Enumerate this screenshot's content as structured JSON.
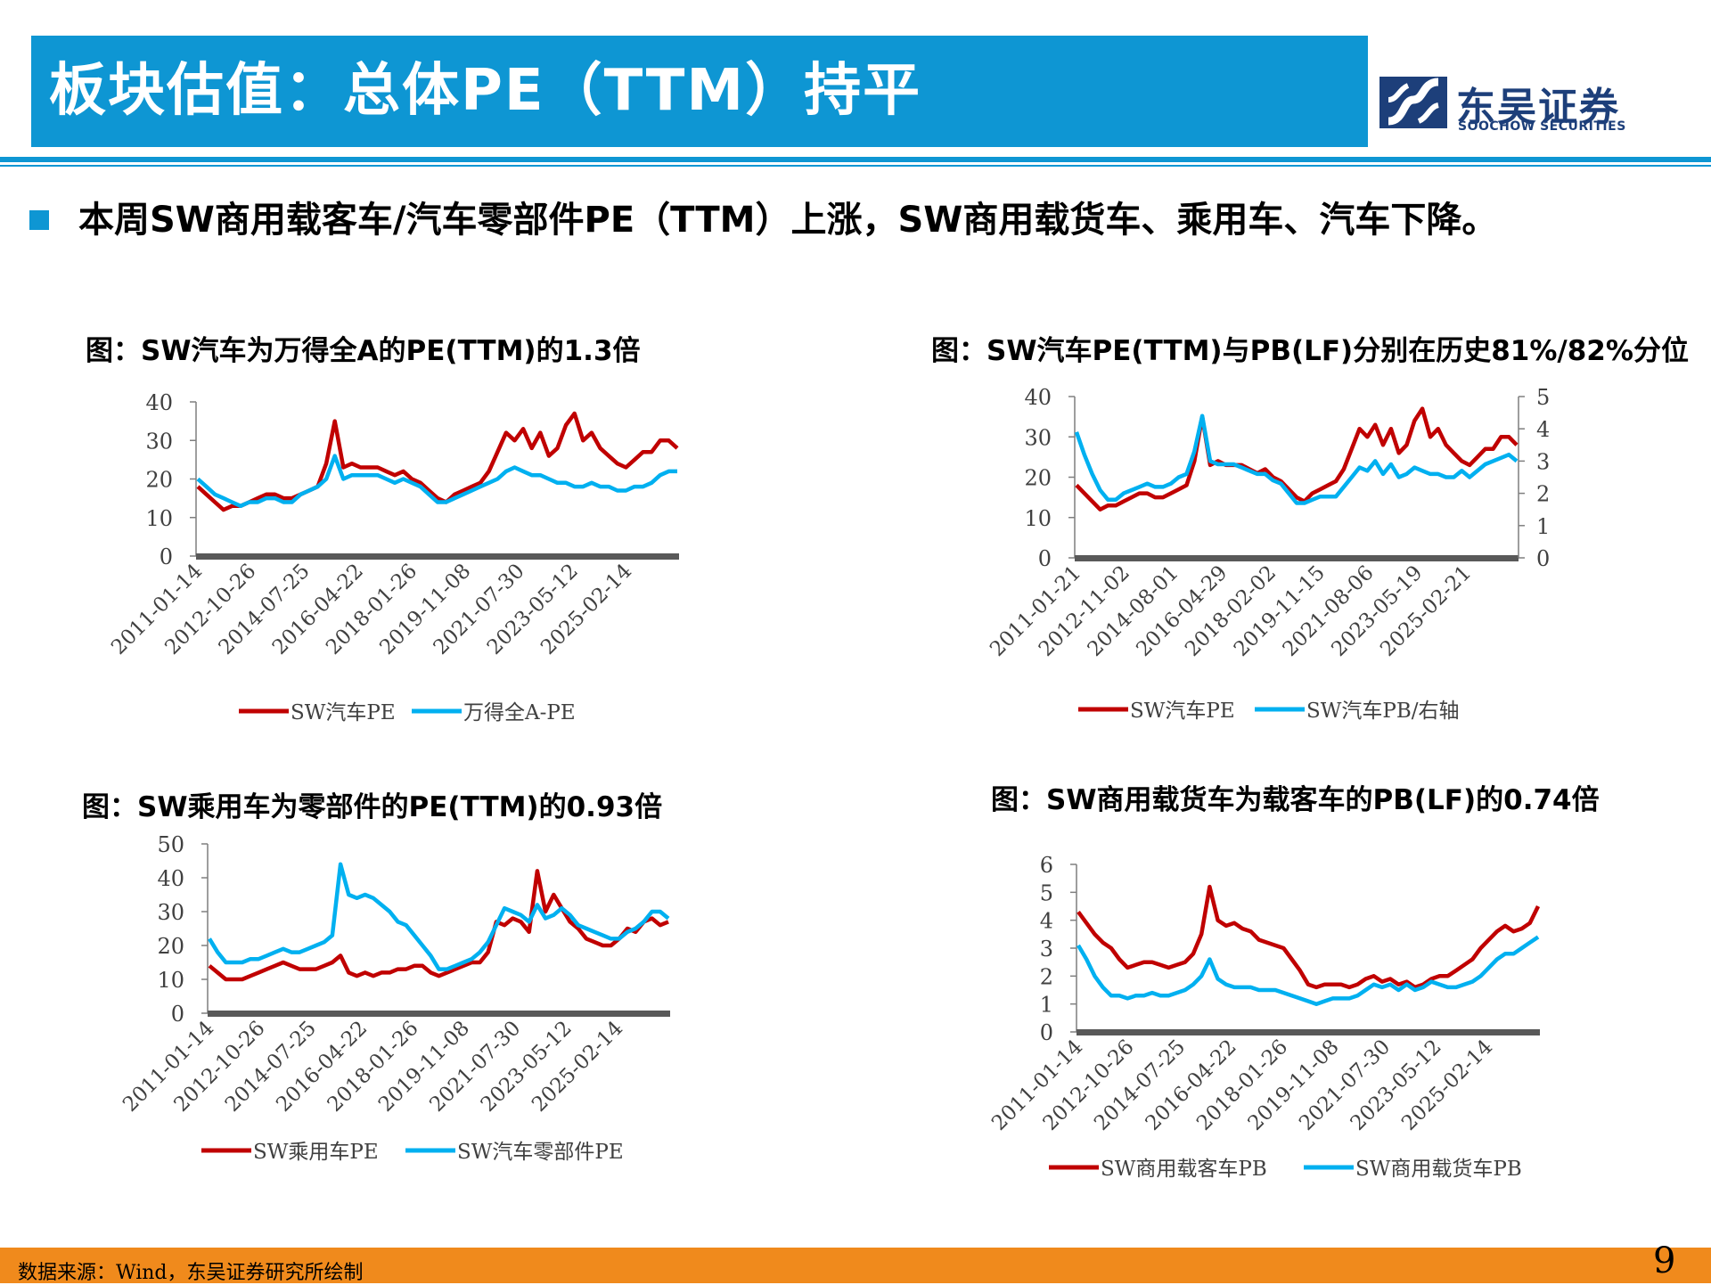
{
  "header": {
    "title": "板块估值：总体PE（TTM）持平"
  },
  "logo": {
    "name_cn": "东吴证券",
    "name_en": "SOOCHOW SECURITIES"
  },
  "bullet": {
    "text": "本周SW商用载客车/汽车零部件PE（TTM）上涨，SW商用载货车、乘用车、汽车下降。"
  },
  "footer": {
    "source": "数据来源：Wind，东吴证券研究所绘制",
    "page": "9"
  },
  "colors": {
    "brand_blue": "#0e96d3",
    "series_red": "#c00000",
    "series_blue": "#00b0f0",
    "footer_orange": "#f08a1c"
  },
  "chart_data": [
    {
      "type": "line",
      "title": "图：SW汽车为万得全A的PE(TTM)的1.3倍",
      "x_ticks": [
        "2011-01-14",
        "2012-10-26",
        "2014-07-25",
        "2016-04-22",
        "2018-01-26",
        "2019-11-08",
        "2021-07-30",
        "2023-05-12",
        "2025-02-14"
      ],
      "ylim": [
        0,
        40
      ],
      "y_ticks": [
        0,
        10,
        20,
        30,
        40
      ],
      "series": [
        {
          "name": "SW汽车PE",
          "color": "#c00000",
          "axis": "left",
          "values": [
            18,
            16,
            14,
            12,
            13,
            13,
            14,
            15,
            16,
            16,
            15,
            15,
            16,
            17,
            18,
            24,
            35,
            23,
            24,
            23,
            23,
            23,
            22,
            21,
            22,
            20,
            19,
            17,
            15,
            14,
            16,
            17,
            18,
            19,
            22,
            27,
            32,
            30,
            33,
            28,
            32,
            26,
            28,
            34,
            37,
            30,
            32,
            28,
            26,
            24,
            23,
            25,
            27,
            27,
            30,
            30,
            28
          ]
        },
        {
          "name": "万得全A-PE",
          "color": "#00b0f0",
          "axis": "left",
          "values": [
            20,
            18,
            16,
            15,
            14,
            13,
            14,
            14,
            15,
            15,
            14,
            14,
            16,
            17,
            18,
            20,
            26,
            20,
            21,
            21,
            21,
            21,
            20,
            19,
            20,
            19,
            18,
            16,
            14,
            14,
            15,
            16,
            17,
            18,
            19,
            20,
            22,
            23,
            22,
            21,
            21,
            20,
            19,
            19,
            18,
            18,
            19,
            18,
            18,
            17,
            17,
            18,
            18,
            19,
            21,
            22,
            22
          ]
        }
      ]
    },
    {
      "type": "line",
      "title": "图：SW汽车PE(TTM)与PB(LF)分别在历史81%/82%分位",
      "x_ticks": [
        "2011-01-21",
        "2012-11-02",
        "2014-08-01",
        "2016-04-29",
        "2018-02-02",
        "2019-11-15",
        "2021-08-06",
        "2023-05-19",
        "2025-02-21"
      ],
      "ylim": [
        0,
        40
      ],
      "y_ticks": [
        0,
        10,
        20,
        30,
        40
      ],
      "y2lim": [
        0,
        5
      ],
      "y2_ticks": [
        0,
        1,
        2,
        3,
        4,
        5
      ],
      "series": [
        {
          "name": "SW汽车PE",
          "color": "#c00000",
          "axis": "left",
          "values": [
            18,
            16,
            14,
            12,
            13,
            13,
            14,
            15,
            16,
            16,
            15,
            15,
            16,
            17,
            18,
            24,
            35,
            23,
            24,
            23,
            23,
            23,
            22,
            21,
            22,
            20,
            19,
            17,
            15,
            14,
            16,
            17,
            18,
            19,
            22,
            27,
            32,
            30,
            33,
            28,
            32,
            26,
            28,
            34,
            37,
            30,
            32,
            28,
            26,
            24,
            23,
            25,
            27,
            27,
            30,
            30,
            28
          ]
        },
        {
          "name": "SW汽车PB/右轴",
          "color": "#00b0f0",
          "axis": "right",
          "values": [
            3.9,
            3.2,
            2.6,
            2.1,
            1.8,
            1.8,
            2.0,
            2.1,
            2.2,
            2.3,
            2.2,
            2.2,
            2.3,
            2.5,
            2.6,
            3.3,
            4.4,
            3.0,
            2.9,
            2.9,
            2.9,
            2.8,
            2.7,
            2.6,
            2.6,
            2.4,
            2.3,
            2.0,
            1.7,
            1.7,
            1.8,
            1.9,
            1.9,
            1.9,
            2.2,
            2.5,
            2.8,
            2.7,
            3.0,
            2.6,
            2.9,
            2.5,
            2.6,
            2.8,
            2.7,
            2.6,
            2.6,
            2.5,
            2.5,
            2.7,
            2.5,
            2.7,
            2.9,
            3.0,
            3.1,
            3.2,
            3.0
          ]
        }
      ]
    },
    {
      "type": "line",
      "title": "图：SW乘用车为零部件的PE(TTM)的0.93倍",
      "x_ticks": [
        "2011-01-14",
        "2012-10-26",
        "2014-07-25",
        "2016-04-22",
        "2018-01-26",
        "2019-11-08",
        "2021-07-30",
        "2023-05-12",
        "2025-02-14"
      ],
      "ylim": [
        0,
        50
      ],
      "y_ticks": [
        0,
        10,
        20,
        30,
        40,
        50
      ],
      "series": [
        {
          "name": "SW乘用车PE",
          "color": "#c00000",
          "axis": "left",
          "values": [
            14,
            12,
            10,
            10,
            10,
            11,
            12,
            13,
            14,
            15,
            14,
            13,
            13,
            13,
            14,
            15,
            17,
            12,
            11,
            12,
            11,
            12,
            12,
            13,
            13,
            14,
            14,
            12,
            11,
            12,
            13,
            14,
            15,
            15,
            18,
            27,
            26,
            28,
            27,
            24,
            42,
            30,
            35,
            31,
            27,
            25,
            22,
            21,
            20,
            20,
            22,
            25,
            24,
            27,
            28,
            26,
            27
          ]
        },
        {
          "name": "SW汽车零部件PE",
          "color": "#00b0f0",
          "axis": "left",
          "values": [
            22,
            18,
            15,
            15,
            15,
            16,
            16,
            17,
            18,
            19,
            18,
            18,
            19,
            20,
            21,
            23,
            44,
            35,
            34,
            35,
            34,
            32,
            30,
            27,
            26,
            23,
            20,
            17,
            13,
            13,
            14,
            15,
            16,
            18,
            21,
            26,
            31,
            30,
            29,
            27,
            32,
            28,
            29,
            31,
            29,
            26,
            25,
            24,
            23,
            22,
            22,
            24,
            25,
            27,
            30,
            30,
            28
          ]
        }
      ]
    },
    {
      "type": "line",
      "title": "图：SW商用载货车为载客车的PB(LF)的0.74倍",
      "x_ticks": [
        "2011-01-14",
        "2012-10-26",
        "2014-07-25",
        "2016-04-22",
        "2018-01-26",
        "2019-11-08",
        "2021-07-30",
        "2023-05-12",
        "2025-02-14"
      ],
      "ylim": [
        0,
        6
      ],
      "y_ticks": [
        0,
        1,
        2,
        3,
        4,
        5,
        6
      ],
      "series": [
        {
          "name": "SW商用载客车PB",
          "color": "#c00000",
          "axis": "left",
          "values": [
            4.3,
            3.9,
            3.5,
            3.2,
            3.0,
            2.6,
            2.3,
            2.4,
            2.5,
            2.5,
            2.4,
            2.3,
            2.4,
            2.5,
            2.8,
            3.5,
            5.2,
            4.0,
            3.8,
            3.9,
            3.7,
            3.6,
            3.3,
            3.2,
            3.1,
            3.0,
            2.6,
            2.2,
            1.7,
            1.6,
            1.7,
            1.7,
            1.7,
            1.6,
            1.7,
            1.9,
            2.0,
            1.8,
            1.9,
            1.7,
            1.8,
            1.6,
            1.7,
            1.9,
            2.0,
            2.0,
            2.2,
            2.4,
            2.6,
            3.0,
            3.3,
            3.6,
            3.8,
            3.6,
            3.7,
            3.9,
            4.5
          ]
        },
        {
          "name": "SW商用载货车PB",
          "color": "#00b0f0",
          "axis": "left",
          "values": [
            3.1,
            2.6,
            2.0,
            1.6,
            1.3,
            1.3,
            1.2,
            1.3,
            1.3,
            1.4,
            1.3,
            1.3,
            1.4,
            1.5,
            1.7,
            2.0,
            2.6,
            1.9,
            1.7,
            1.6,
            1.6,
            1.6,
            1.5,
            1.5,
            1.5,
            1.4,
            1.3,
            1.2,
            1.1,
            1.0,
            1.1,
            1.2,
            1.2,
            1.2,
            1.3,
            1.5,
            1.7,
            1.6,
            1.7,
            1.5,
            1.7,
            1.5,
            1.6,
            1.8,
            1.7,
            1.6,
            1.6,
            1.7,
            1.8,
            2.0,
            2.3,
            2.6,
            2.8,
            2.8,
            3.0,
            3.2,
            3.4
          ]
        }
      ]
    }
  ]
}
